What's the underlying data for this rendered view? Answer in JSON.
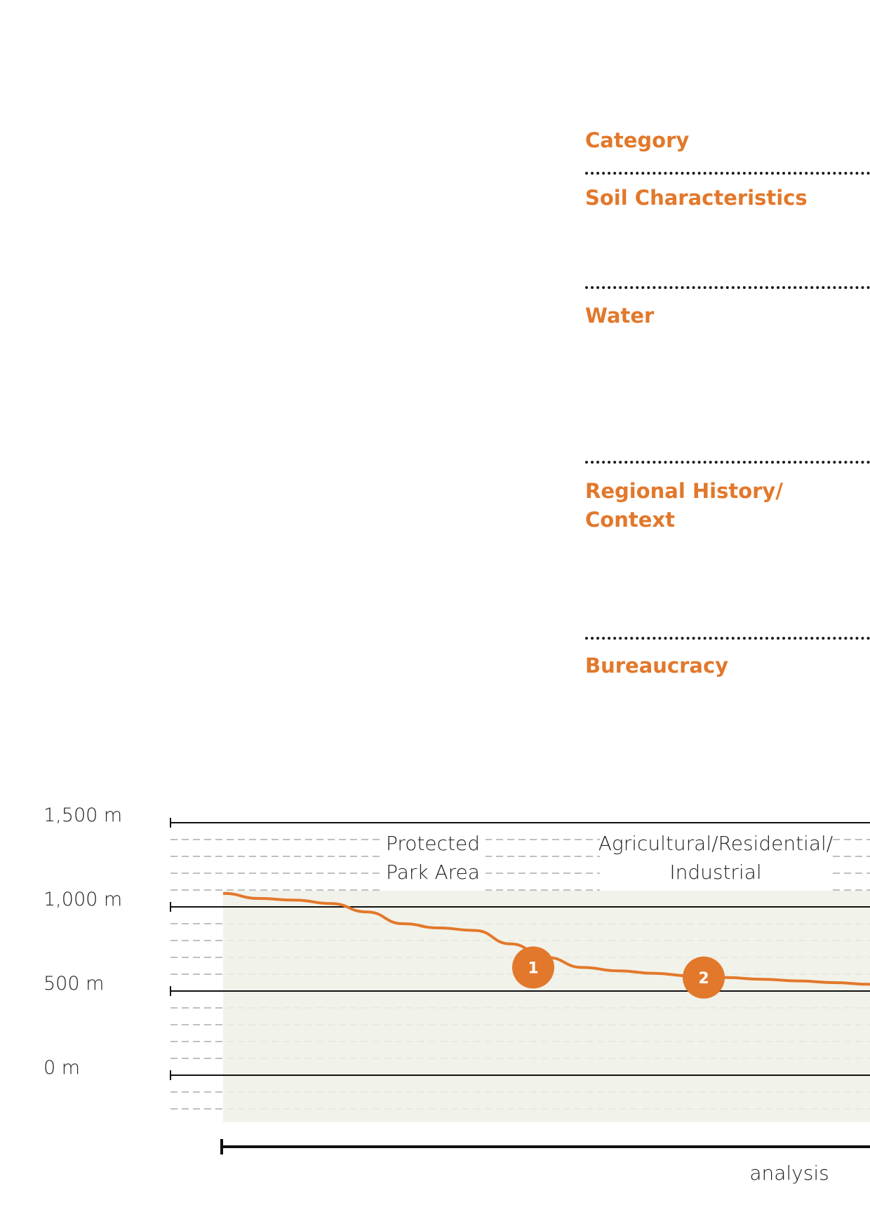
{
  "categories": {
    "header": "Category",
    "soil": "Soil Characteristics",
    "water": "Water",
    "history_line1": "Regional History/",
    "history_line2": "Context",
    "bureaucracy": "Bureaucracy"
  },
  "colors": {
    "accent": "#e2782b",
    "text": "#222222",
    "terrain_fill": "#eef0e6"
  },
  "chart_data": {
    "type": "line",
    "y_ticks": [
      "1,500 m",
      "1,000 m",
      "500 m",
      "0 m"
    ],
    "y_tick_values": [
      1500,
      1000,
      500,
      0
    ],
    "ylim": [
      -200,
      1500
    ],
    "zones": [
      {
        "line1": "Protected",
        "line2": "Park Area"
      },
      {
        "line1": "Agricultural/Residential/",
        "line2": "Industrial"
      }
    ],
    "series": [
      {
        "values": [
          1080,
          1050,
          1040,
          1020,
          970,
          900,
          875,
          860,
          780,
          700,
          640,
          620,
          605,
          590,
          580,
          570,
          560,
          550,
          540
        ]
      }
    ],
    "markers": [
      {
        "label": "1",
        "value": 640
      },
      {
        "label": "2",
        "value": 580
      }
    ],
    "x_caption": "analysis"
  }
}
